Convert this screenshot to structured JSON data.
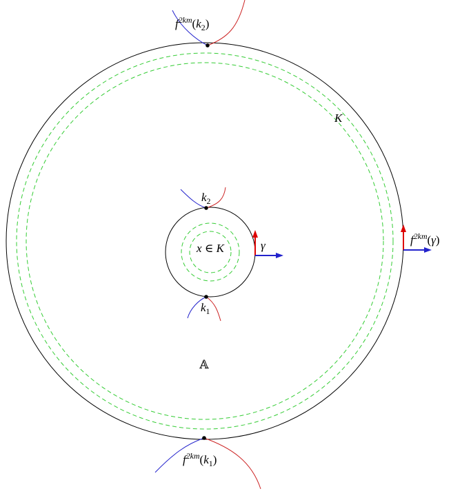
{
  "labels": {
    "top_image": [
      {
        "text": "f",
        "style": "italic"
      },
      {
        "text": "2km",
        "style": "sup"
      },
      {
        "text": "("
      },
      {
        "text": "k",
        "style": "italic"
      },
      {
        "text": "2",
        "style": "sub"
      },
      {
        "text": ")"
      }
    ],
    "K": [
      {
        "text": "K",
        "style": "italic"
      }
    ],
    "k2": [
      {
        "text": "k",
        "style": "italic"
      },
      {
        "text": "2",
        "style": "sub"
      }
    ],
    "x_in_K": [
      {
        "text": "x",
        "style": "italic"
      },
      {
        "text": " ∈ "
      },
      {
        "text": "K",
        "style": "italic"
      }
    ],
    "gamma": [
      {
        "text": "γ",
        "style": "italic"
      }
    ],
    "gamma_image": [
      {
        "text": "f",
        "style": "italic"
      },
      {
        "text": "2km",
        "style": "sup"
      },
      {
        "text": "("
      },
      {
        "text": "γ",
        "style": "italic"
      },
      {
        "text": ")"
      }
    ],
    "k1": [
      {
        "text": "k",
        "style": "italic"
      },
      {
        "text": "1",
        "style": "sub"
      }
    ],
    "A": [
      {
        "text": "𝔸"
      }
    ],
    "bottom_image": [
      {
        "text": "f",
        "style": "italic"
      },
      {
        "text": "2km",
        "style": "sup"
      },
      {
        "text": "("
      },
      {
        "text": "k",
        "style": "italic"
      },
      {
        "text": "1",
        "style": "sub"
      },
      {
        "text": ")"
      }
    ]
  }
}
